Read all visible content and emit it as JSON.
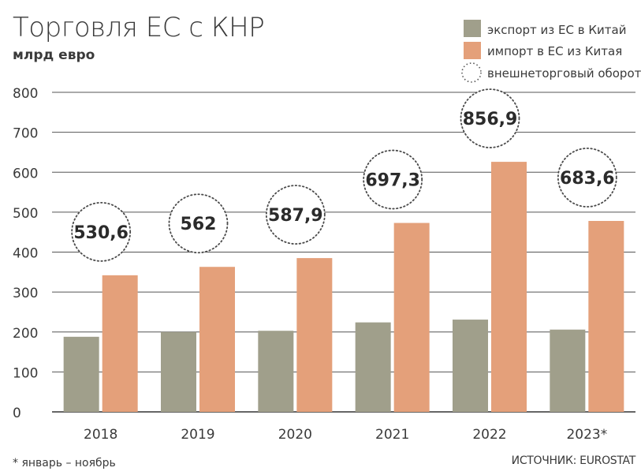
{
  "chart_data": {
    "type": "bar",
    "title": "Торговля ЕС с КНР",
    "subtitle": "млрд евро",
    "categories": [
      "2018",
      "2019",
      "2020",
      "2021",
      "2022",
      "2023*"
    ],
    "series": [
      {
        "name": "экспорт из ЕС в Китай",
        "color": "#a09f8b",
        "values": [
          188,
          200,
          203,
          224,
          231,
          206
        ]
      },
      {
        "name": "импорт в ЕС из Китая",
        "color": "#e4a07a",
        "values": [
          342,
          363,
          385,
          473,
          626,
          478
        ]
      }
    ],
    "totals": {
      "name": "внешнеторговый оборот",
      "labels": [
        "530,6",
        "562",
        "587,9",
        "697,3",
        "856,9",
        "683,6"
      ],
      "values": [
        530.6,
        562,
        587.9,
        697.3,
        856.9,
        683.6
      ]
    },
    "ylim": [
      0,
      800
    ],
    "yticks": [
      0,
      100,
      200,
      300,
      400,
      500,
      600,
      700,
      800
    ],
    "grid": true,
    "legend_position": "top-right",
    "footnote": "* январь – ноябрь",
    "source": "ИСТОЧНИК: EUROSTAT"
  }
}
